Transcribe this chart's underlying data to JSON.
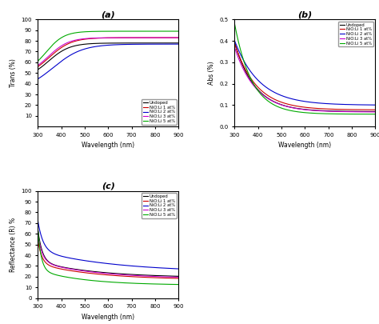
{
  "wavelength_range": [
    300,
    900
  ],
  "colors": {
    "undoped": "#000000",
    "1at": "#cc0000",
    "2at": "#0000cc",
    "3at": "#cc00cc",
    "5at": "#00aa00"
  },
  "legend_labels": [
    "Undoped",
    "NiO:Li 1 at%",
    "NiO:Li 2 at%",
    "NiO:Li 3 at%",
    "NiO:Li 5 at%"
  ],
  "trans_ylabel": "Trans (%)",
  "abs_ylabel": "Abs (%)",
  "ref_ylabel": "Reflectance (R) %",
  "xlabel": "Wavelength (nm)",
  "title_a": "(a)",
  "title_b": "(b)",
  "title_c": "(c)",
  "trans_ylim": [
    0,
    100
  ],
  "abs_ylim": [
    0.0,
    0.5
  ],
  "ref_ylim": [
    0,
    100
  ],
  "xticks": [
    300,
    400,
    500,
    600,
    700,
    800,
    900
  ]
}
